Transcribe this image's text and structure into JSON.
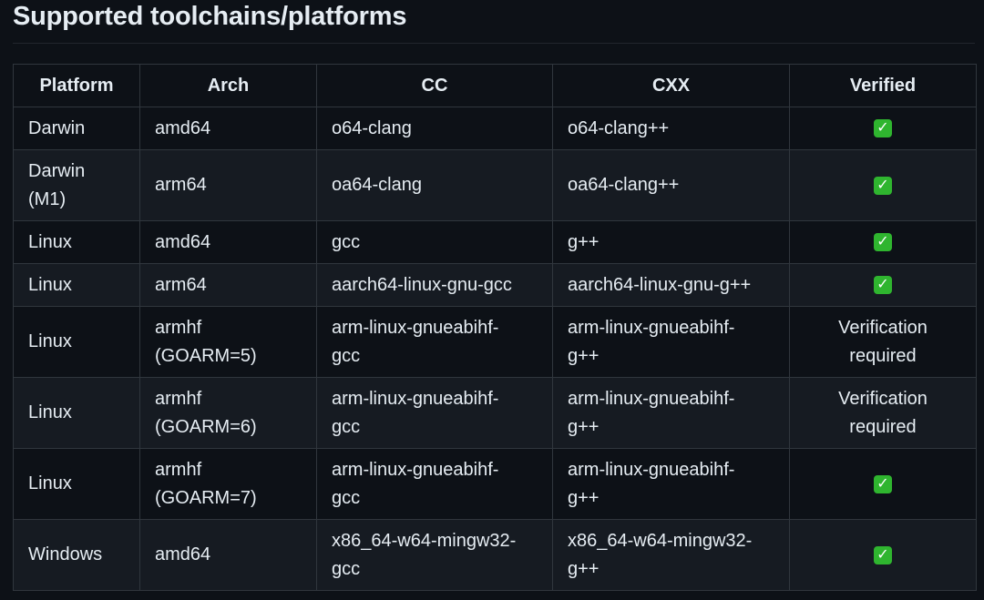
{
  "heading": "Supported toolchains/platforms",
  "table": {
    "headers": [
      "Platform",
      "Arch",
      "CC",
      "CXX",
      "Verified"
    ],
    "rows": [
      {
        "platform": "Darwin",
        "arch": "amd64",
        "cc": "o64-clang",
        "cxx": "o64-clang++",
        "verified": true,
        "verified_text": ""
      },
      {
        "platform": "Darwin (M1)",
        "arch": "arm64",
        "cc": "oa64-clang",
        "cxx": "oa64-clang++",
        "verified": true,
        "verified_text": ""
      },
      {
        "platform": "Linux",
        "arch": "amd64",
        "cc": "gcc",
        "cxx": "g++",
        "verified": true,
        "verified_text": ""
      },
      {
        "platform": "Linux",
        "arch": "arm64",
        "cc": "aarch64-linux-gnu-gcc",
        "cxx": "aarch64-linux-gnu-g++",
        "verified": true,
        "verified_text": ""
      },
      {
        "platform": "Linux",
        "arch": "armhf (GOARM=5)",
        "cc": "arm-linux-gnueabihf-gcc",
        "cxx": "arm-linux-gnueabihf-g++",
        "verified": false,
        "verified_text": "Verification required"
      },
      {
        "platform": "Linux",
        "arch": "armhf (GOARM=6)",
        "cc": "arm-linux-gnueabihf-gcc",
        "cxx": "arm-linux-gnueabihf-g++",
        "verified": false,
        "verified_text": "Verification required"
      },
      {
        "platform": "Linux",
        "arch": "armhf (GOARM=7)",
        "cc": "arm-linux-gnueabihf-gcc",
        "cxx": "arm-linux-gnueabihf-g++",
        "verified": true,
        "verified_text": ""
      },
      {
        "platform": "Windows",
        "arch": "amd64",
        "cc": "x86_64-w64-mingw32-gcc",
        "cxx": "x86_64-w64-mingw32-g++",
        "verified": true,
        "verified_text": ""
      }
    ],
    "verified_icon": "check-mark-button-icon",
    "check_color": "#2fb52f"
  }
}
